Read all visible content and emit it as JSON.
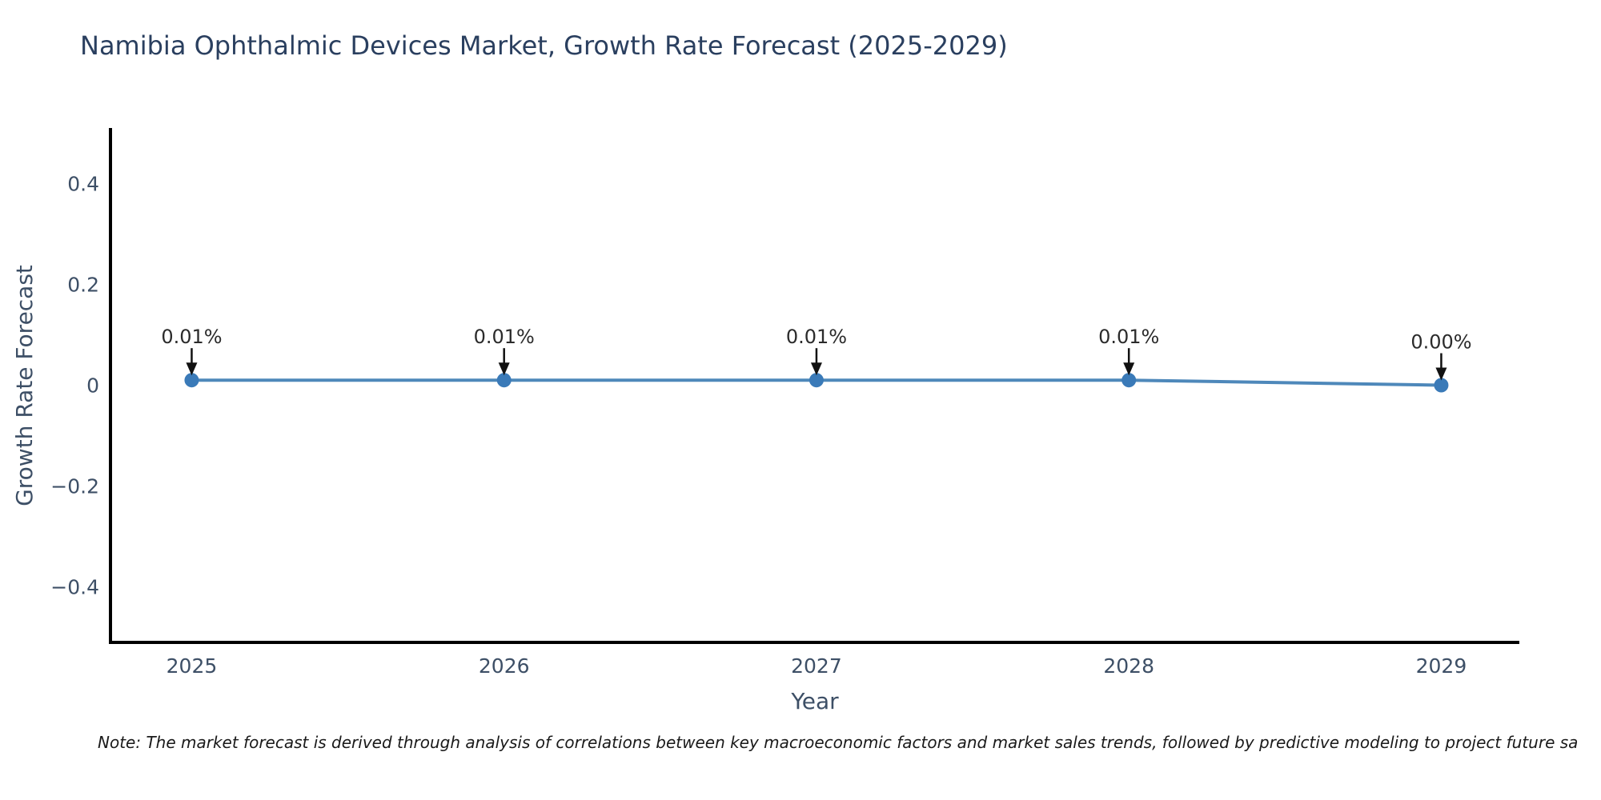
{
  "chart_data": {
    "type": "line",
    "title": "Namibia Ophthalmic Devices Market, Growth Rate Forecast (2025-2029)",
    "xlabel": "Year",
    "ylabel": "Growth Rate Forecast",
    "x": [
      2025,
      2026,
      2027,
      2028,
      2029
    ],
    "series": [
      {
        "name": "Growth Rate Forecast",
        "values": [
          0.01,
          0.01,
          0.01,
          0.01,
          0.0
        ]
      }
    ],
    "point_labels": [
      "0.01%",
      "0.01%",
      "0.01%",
      "0.01%",
      "0.00%"
    ],
    "x_axis": {
      "ticks": [
        {
          "value": 2025,
          "label": "2025"
        },
        {
          "value": 2026,
          "label": "2026"
        },
        {
          "value": 2027,
          "label": "2027"
        },
        {
          "value": 2028,
          "label": "2028"
        },
        {
          "value": 2029,
          "label": "2029"
        }
      ]
    },
    "y_axis": {
      "ticks": [
        {
          "value": 0.4,
          "label": "0.4"
        },
        {
          "value": 0.2,
          "label": "0.2"
        },
        {
          "value": 0,
          "label": "0"
        },
        {
          "value": -0.2,
          "label": "−0.2"
        },
        {
          "value": -0.4,
          "label": "−0.4"
        }
      ]
    },
    "xlim": [
      2024.74,
      2029.25
    ],
    "ylim": [
      -0.51,
      0.51
    ],
    "grid": false,
    "legend": "none",
    "colors": {
      "line": "#4e88ba",
      "marker": "#3a7ab8",
      "spine": "#000000",
      "tick_label": "#3d4f66",
      "axis_label": "#3d4f66",
      "title": "#2a3f5f",
      "annotation_text": "#2b2b2b",
      "annotation_arrow": "#111111"
    }
  },
  "footnote": "Note: The market forecast is derived through analysis of correlations between key macroeconomic factors and market sales trends, followed by predictive modeling to project future sa"
}
